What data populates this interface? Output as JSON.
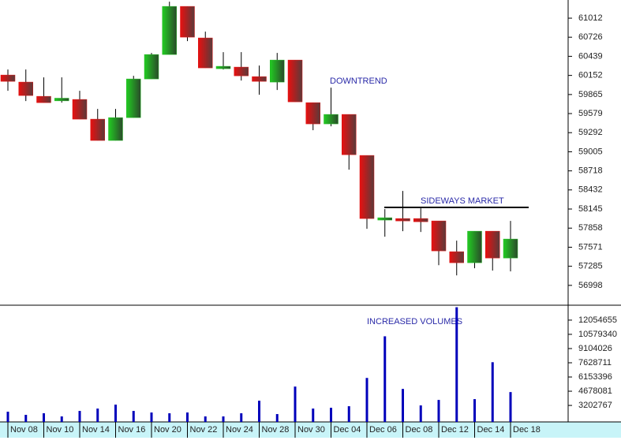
{
  "chart_data": [
    {
      "type": "candlestick",
      "open": [
        60158,
        60052,
        59838,
        59770,
        59791,
        59495,
        59175,
        59518,
        60099,
        60466,
        61189,
        60715,
        60253,
        60277,
        60134,
        60052,
        60383,
        59743,
        59424,
        59566,
        58950,
        57979,
        58002,
        58002,
        57966,
        57504,
        57338,
        57812,
        57409
      ],
      "high": [
        60241,
        60241,
        60123,
        60123,
        59921,
        59649,
        59649,
        60146,
        60490,
        61260,
        61189,
        60810,
        60502,
        60502,
        60300,
        60490,
        60383,
        59743,
        59969,
        59566,
        58950,
        58144,
        58416,
        58156,
        57966,
        57670,
        57812,
        57812,
        57966
      ],
      "low": [
        59921,
        59767,
        59743,
        59743,
        59495,
        59175,
        59175,
        59518,
        60099,
        60466,
        60668,
        60265,
        60241,
        60075,
        59862,
        59933,
        59755,
        59329,
        59388,
        58736,
        57848,
        57729,
        57812,
        57800,
        57302,
        57148,
        57255,
        57220,
        57208
      ],
      "close": [
        60063,
        59850,
        59743,
        59810,
        59495,
        59175,
        59518,
        60099,
        60466,
        61189,
        60727,
        60265,
        60289,
        60146,
        60063,
        60383,
        59755,
        59424,
        59566,
        58961,
        58002,
        58014,
        57966,
        57954,
        57516,
        57338,
        57812,
        57409,
        57694
      ],
      "up_color": "#22b822",
      "down_color": "#dd1111",
      "ylim": [
        56700,
        61285
      ],
      "yticks": [
        56998,
        57285,
        57571,
        57858,
        58145,
        58432,
        58718,
        59005,
        59292,
        59579,
        59865,
        60152,
        60439,
        60726,
        61012
      ],
      "annotations": [
        "DOWNTREND",
        "SIDEWAYS MARKET"
      ]
    },
    {
      "type": "bar",
      "categories": [
        "Nov 08",
        null,
        "Nov 10",
        null,
        "Nov 14",
        null,
        "Nov 16",
        null,
        "Nov 20",
        null,
        "Nov 22",
        null,
        "Nov 24",
        null,
        "Nov 28",
        null,
        "Nov 30",
        null,
        "Dec 04",
        null,
        "Dec 06",
        null,
        "Dec 08",
        null,
        "Dec 12",
        null,
        "Dec 14",
        null,
        "Dec 18"
      ],
      "values": [
        2551000,
        2225000,
        2388000,
        2062000,
        2632000,
        2877000,
        3284000,
        2632000,
        2469000,
        2388000,
        2469000,
        2062000,
        2062000,
        2388000,
        3692000,
        2306000,
        5159000,
        2877000,
        2958000,
        3121000,
        6056000,
        10376000,
        4914000,
        3203000,
        3773000,
        13391000,
        3855000,
        7686000,
        4588000
      ],
      "color": "#0000bb",
      "ylim": [
        1491000,
        13603000
      ],
      "yticks": [
        3202767,
        4678081,
        6153396,
        7628711,
        9104026,
        10579340,
        12054655
      ],
      "annotations": [
        "INCREASED VOLUMES"
      ]
    }
  ]
}
